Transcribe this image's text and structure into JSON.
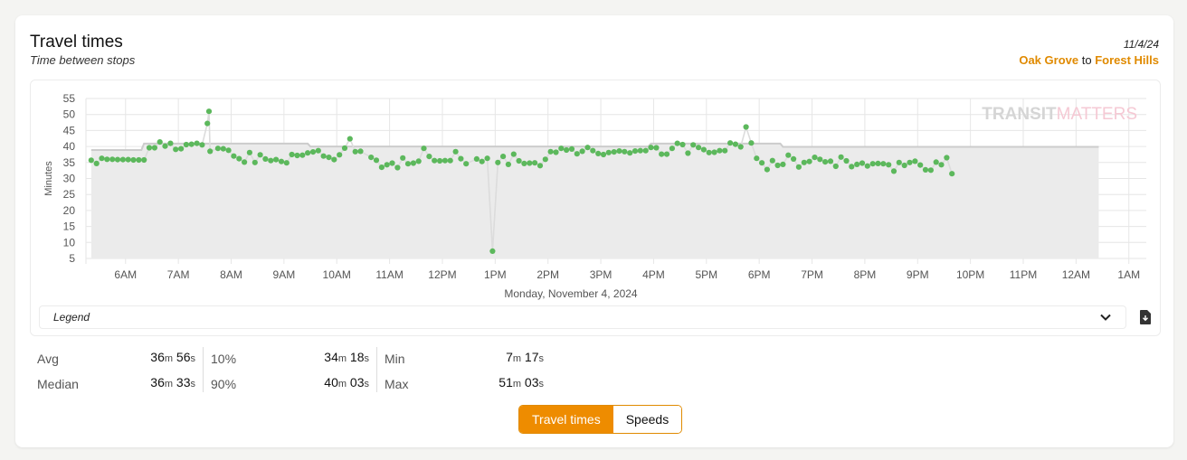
{
  "header": {
    "title": "Travel times",
    "subtitle": "Time between stops",
    "date": "11/4/24",
    "from": "Oak Grove",
    "to_word": "to",
    "to": "Forest Hills"
  },
  "watermark": {
    "part1": "TRANSIT",
    "part2": "MATTERS"
  },
  "legend": {
    "label": "Legend"
  },
  "stats": {
    "avg": {
      "label": "Avg",
      "m": "36",
      "s": "56"
    },
    "median": {
      "label": "Median",
      "m": "36",
      "s": "33"
    },
    "p10": {
      "label": "10%",
      "m": "34",
      "s": "18"
    },
    "p90": {
      "label": "90%",
      "m": "40",
      "s": "03"
    },
    "min": {
      "label": "Min",
      "m": "7",
      "s": "17"
    },
    "max": {
      "label": "Max",
      "m": "51",
      "s": "03"
    },
    "unit_m": "m",
    "unit_s": "s"
  },
  "toggle": {
    "travel_times": "Travel times",
    "speeds": "Speeds"
  },
  "colors": {
    "accent": "#ee8c00",
    "points": "#5cb85c",
    "benchmark_fill": "#ebebeb",
    "benchmark_line": "#cccccc"
  },
  "icons": {
    "chevron": "chevron-down-icon",
    "download": "download-icon"
  },
  "chart_data": {
    "type": "scatter",
    "title": "",
    "ylabel": "Minutes",
    "xlabel": "Monday, November 4, 2024",
    "ylim": [
      5,
      55
    ],
    "yticks": [
      5,
      10,
      15,
      20,
      25,
      30,
      35,
      40,
      45,
      50,
      55
    ],
    "xlim": [
      5.25,
      25.33
    ],
    "xticks": [
      {
        "v": 6,
        "label": "6AM"
      },
      {
        "v": 7,
        "label": "7AM"
      },
      {
        "v": 8,
        "label": "8AM"
      },
      {
        "v": 9,
        "label": "9AM"
      },
      {
        "v": 10,
        "label": "10AM"
      },
      {
        "v": 11,
        "label": "11AM"
      },
      {
        "v": 12,
        "label": "12PM"
      },
      {
        "v": 13,
        "label": "1PM"
      },
      {
        "v": 14,
        "label": "2PM"
      },
      {
        "v": 15,
        "label": "3PM"
      },
      {
        "v": 16,
        "label": "4PM"
      },
      {
        "v": 17,
        "label": "5PM"
      },
      {
        "v": 18,
        "label": "6PM"
      },
      {
        "v": 19,
        "label": "7PM"
      },
      {
        "v": 20,
        "label": "8PM"
      },
      {
        "v": 21,
        "label": "9PM"
      },
      {
        "v": 22,
        "label": "10PM"
      },
      {
        "v": 23,
        "label": "11PM"
      },
      {
        "v": 24,
        "label": "12AM"
      },
      {
        "v": 25,
        "label": "1AM"
      }
    ],
    "grid": true,
    "benchmark": [
      [
        5.35,
        38.9
      ],
      [
        6.3,
        38.9
      ],
      [
        6.35,
        40.9
      ],
      [
        9.45,
        40.9
      ],
      [
        9.5,
        40.0
      ],
      [
        15.9,
        40.0
      ],
      [
        15.95,
        40.9
      ],
      [
        18.4,
        40.9
      ],
      [
        18.45,
        39.9
      ],
      [
        24.43,
        39.9
      ]
    ],
    "series": [
      {
        "points": [
          [
            5.35,
            35.7
          ],
          [
            5.45,
            34.7
          ],
          [
            5.55,
            36.3
          ],
          [
            5.65,
            36.0
          ],
          [
            5.75,
            36.0
          ],
          [
            5.85,
            35.9
          ],
          [
            5.95,
            35.9
          ],
          [
            6.05,
            35.9
          ],
          [
            6.15,
            35.8
          ],
          [
            6.25,
            35.8
          ],
          [
            6.35,
            35.8
          ],
          [
            6.45,
            39.6
          ],
          [
            6.55,
            39.6
          ],
          [
            6.65,
            41.4
          ],
          [
            6.75,
            40.1
          ],
          [
            6.85,
            41.0
          ],
          [
            6.95,
            39.1
          ],
          [
            7.05,
            39.3
          ],
          [
            7.15,
            40.6
          ],
          [
            7.25,
            40.7
          ],
          [
            7.35,
            41.0
          ],
          [
            7.45,
            40.5
          ],
          [
            7.55,
            47.2
          ],
          [
            7.58,
            51.0
          ],
          [
            7.6,
            38.5
          ],
          [
            7.75,
            39.4
          ],
          [
            7.85,
            39.3
          ],
          [
            7.95,
            38.8
          ],
          [
            8.05,
            37.0
          ],
          [
            8.15,
            36.2
          ],
          [
            8.25,
            35.1
          ],
          [
            8.35,
            38.1
          ],
          [
            8.45,
            35.0
          ],
          [
            8.55,
            37.4
          ],
          [
            8.65,
            36.1
          ],
          [
            8.75,
            35.6
          ],
          [
            8.85,
            35.9
          ],
          [
            8.95,
            35.3
          ],
          [
            9.05,
            34.9
          ],
          [
            9.15,
            37.5
          ],
          [
            9.25,
            37.2
          ],
          [
            9.35,
            37.3
          ],
          [
            9.45,
            38.0
          ],
          [
            9.55,
            38.3
          ],
          [
            9.65,
            38.7
          ],
          [
            9.75,
            37.0
          ],
          [
            9.85,
            36.6
          ],
          [
            9.95,
            35.9
          ],
          [
            10.05,
            37.4
          ],
          [
            10.15,
            39.5
          ],
          [
            10.25,
            42.4
          ],
          [
            10.35,
            38.4
          ],
          [
            10.45,
            38.5
          ],
          [
            10.65,
            36.6
          ],
          [
            10.75,
            35.7
          ],
          [
            10.85,
            33.5
          ],
          [
            10.95,
            34.3
          ],
          [
            11.05,
            34.8
          ],
          [
            11.15,
            33.4
          ],
          [
            11.25,
            36.4
          ],
          [
            11.35,
            34.6
          ],
          [
            11.45,
            34.8
          ],
          [
            11.55,
            35.4
          ],
          [
            11.65,
            39.4
          ],
          [
            11.75,
            36.9
          ],
          [
            11.85,
            35.6
          ],
          [
            11.95,
            35.5
          ],
          [
            12.05,
            35.6
          ],
          [
            12.15,
            35.6
          ],
          [
            12.25,
            38.4
          ],
          [
            12.35,
            36.2
          ],
          [
            12.45,
            34.6
          ],
          [
            12.65,
            36.1
          ],
          [
            12.75,
            35.3
          ],
          [
            12.85,
            36.3
          ],
          [
            12.95,
            7.3
          ],
          [
            13.05,
            35.0
          ],
          [
            13.15,
            36.9
          ],
          [
            13.25,
            34.4
          ],
          [
            13.35,
            37.6
          ],
          [
            13.45,
            35.5
          ],
          [
            13.55,
            34.7
          ],
          [
            13.65,
            34.8
          ],
          [
            13.75,
            34.9
          ],
          [
            13.85,
            34.0
          ],
          [
            13.95,
            36.0
          ],
          [
            14.05,
            38.4
          ],
          [
            14.15,
            38.2
          ],
          [
            14.25,
            39.4
          ],
          [
            14.35,
            38.9
          ],
          [
            14.45,
            39.2
          ],
          [
            14.55,
            37.7
          ],
          [
            14.65,
            38.5
          ],
          [
            14.75,
            39.7
          ],
          [
            14.85,
            38.7
          ],
          [
            14.95,
            37.8
          ],
          [
            15.05,
            37.5
          ],
          [
            15.15,
            38.1
          ],
          [
            15.25,
            38.3
          ],
          [
            15.35,
            38.6
          ],
          [
            15.45,
            38.4
          ],
          [
            15.55,
            38.0
          ],
          [
            15.65,
            38.6
          ],
          [
            15.75,
            38.7
          ],
          [
            15.85,
            38.7
          ],
          [
            15.95,
            39.7
          ],
          [
            16.05,
            39.6
          ],
          [
            16.15,
            37.6
          ],
          [
            16.25,
            37.6
          ],
          [
            16.35,
            39.4
          ],
          [
            16.45,
            41.0
          ],
          [
            16.55,
            40.6
          ],
          [
            16.65,
            37.9
          ],
          [
            16.75,
            40.5
          ],
          [
            16.85,
            39.7
          ],
          [
            16.95,
            39.0
          ],
          [
            17.05,
            38.1
          ],
          [
            17.15,
            38.2
          ],
          [
            17.25,
            38.7
          ],
          [
            17.35,
            38.7
          ],
          [
            17.45,
            41.1
          ],
          [
            17.55,
            40.7
          ],
          [
            17.65,
            39.9
          ],
          [
            17.75,
            46.1
          ],
          [
            17.85,
            41.1
          ],
          [
            17.95,
            36.3
          ],
          [
            18.05,
            34.9
          ],
          [
            18.15,
            32.8
          ],
          [
            18.25,
            35.6
          ],
          [
            18.35,
            34.1
          ],
          [
            18.45,
            34.4
          ],
          [
            18.55,
            37.3
          ],
          [
            18.65,
            36.1
          ],
          [
            18.75,
            33.6
          ],
          [
            18.85,
            35.0
          ],
          [
            18.95,
            35.3
          ],
          [
            19.05,
            36.6
          ],
          [
            19.15,
            36.0
          ],
          [
            19.25,
            35.2
          ],
          [
            19.35,
            35.4
          ],
          [
            19.45,
            33.8
          ],
          [
            19.55,
            36.7
          ],
          [
            19.65,
            35.5
          ],
          [
            19.75,
            33.7
          ],
          [
            19.85,
            34.4
          ],
          [
            19.95,
            34.8
          ],
          [
            20.05,
            33.9
          ],
          [
            20.15,
            34.6
          ],
          [
            20.25,
            34.7
          ],
          [
            20.35,
            34.6
          ],
          [
            20.45,
            34.3
          ],
          [
            20.55,
            32.3
          ],
          [
            20.65,
            35.0
          ],
          [
            20.75,
            34.1
          ],
          [
            20.85,
            35.0
          ],
          [
            20.95,
            35.4
          ],
          [
            21.05,
            34.2
          ],
          [
            21.15,
            32.7
          ],
          [
            21.25,
            32.6
          ],
          [
            21.35,
            35.1
          ],
          [
            21.45,
            34.3
          ],
          [
            21.55,
            36.5
          ],
          [
            21.65,
            31.5
          ]
        ]
      }
    ]
  }
}
